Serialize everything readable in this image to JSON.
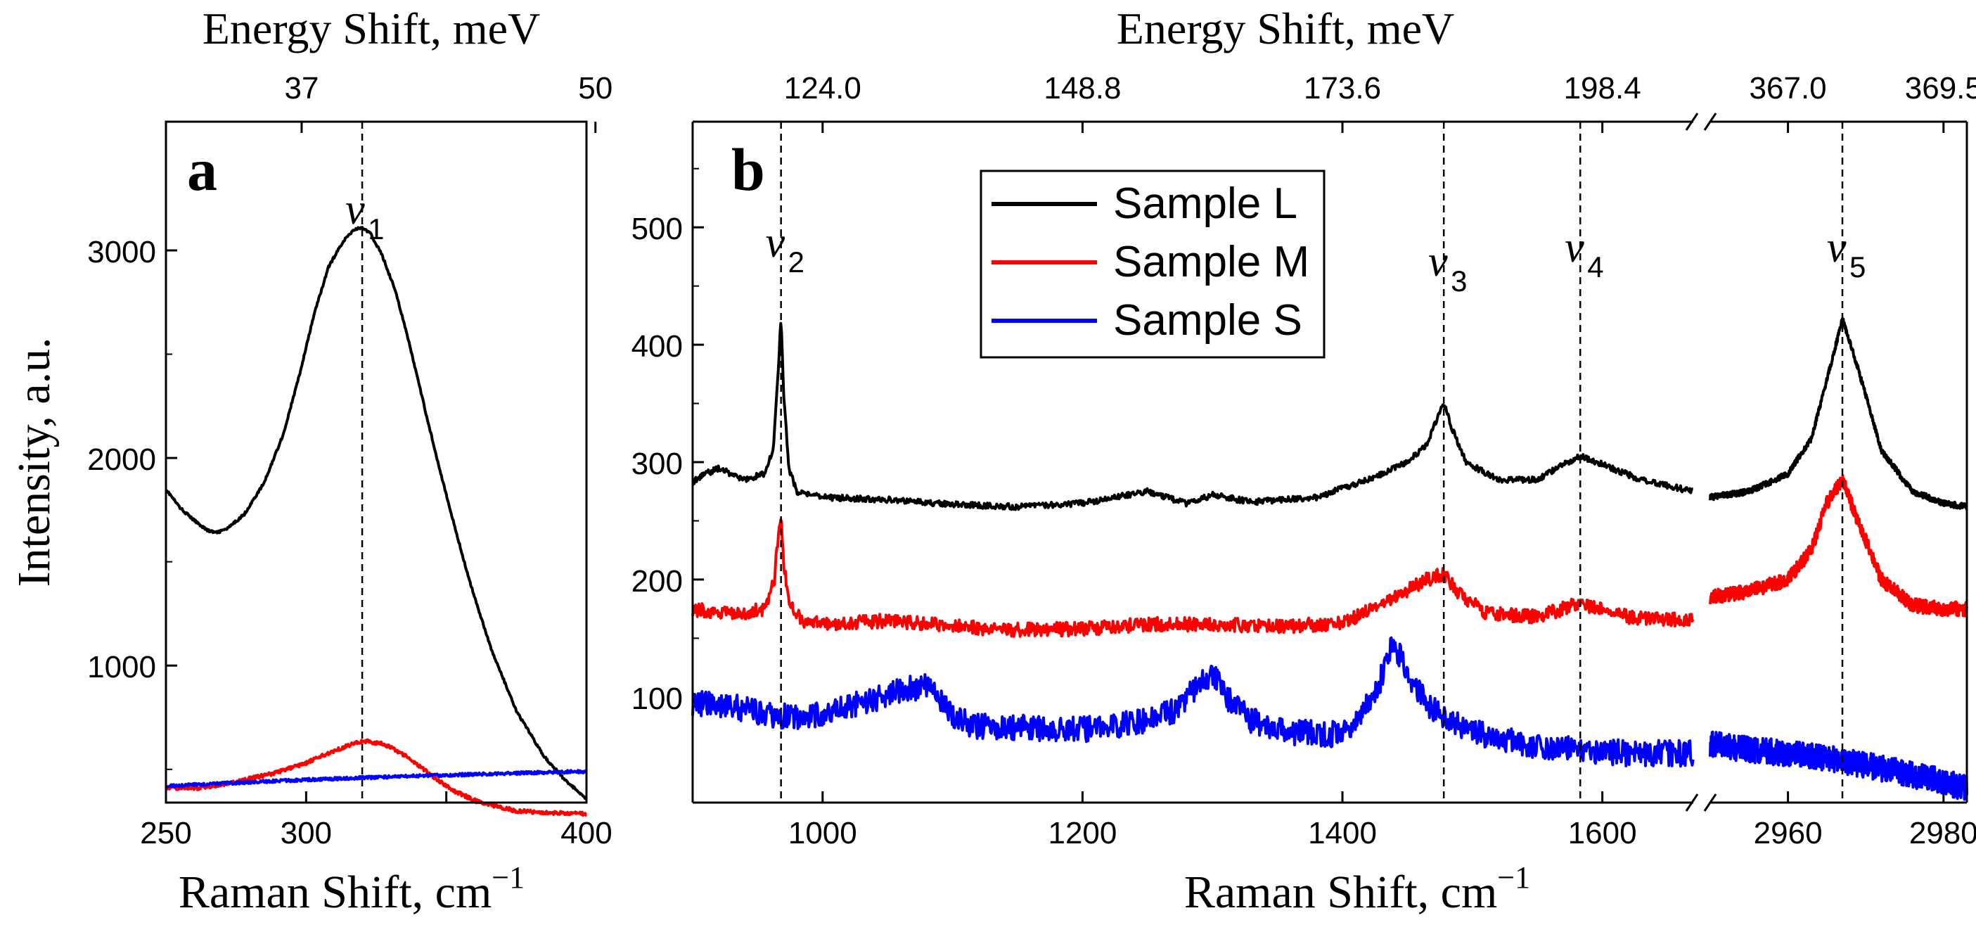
{
  "chart_data": [
    {
      "panel": "a",
      "type": "line",
      "xlabel": "Raman Shift, cm",
      "xlabel_sup": "−1",
      "ylabel": "Intensity, a.u.",
      "top_xlabel": "Energy Shift, meV",
      "xlim": [
        250,
        400
      ],
      "ylim": [
        340,
        3620
      ],
      "x_ticks": [
        250,
        300,
        350,
        400
      ],
      "x_tick_labels": [
        "250",
        "",
        "",
        "400"
      ],
      "x_tick_labels_extra": [
        {
          "x": 300,
          "label": "300"
        }
      ],
      "y_ticks": [
        1000,
        2000,
        3000
      ],
      "y_tick_labels": [
        "1000",
        "2000",
        "3000"
      ],
      "top_ticks": [
        {
          "x": 298.4,
          "label": "37"
        },
        {
          "x": 403.2,
          "label": "50"
        }
      ],
      "peaks": [
        {
          "x": 320,
          "symbol": "ν",
          "sub": "1"
        }
      ],
      "series": [
        {
          "name": "Sample L",
          "color": "#000000",
          "x": [
            250,
            255,
            260,
            265,
            268,
            272,
            278,
            285,
            292,
            298,
            303,
            308,
            313,
            317,
            320,
            323,
            327,
            332,
            337,
            343,
            350,
            358,
            366,
            375,
            385,
            393,
            400
          ],
          "y": [
            1850,
            1760,
            1700,
            1650,
            1640,
            1660,
            1730,
            1880,
            2120,
            2420,
            2700,
            2920,
            3040,
            3100,
            3110,
            3080,
            2980,
            2800,
            2540,
            2200,
            1820,
            1420,
            1080,
            780,
            560,
            440,
            360
          ]
        },
        {
          "name": "Sample M",
          "color": "#ff0000",
          "x": [
            250,
            262,
            275,
            288,
            300,
            310,
            318,
            322,
            328,
            335,
            343,
            352,
            362,
            375,
            388,
            400
          ],
          "y": [
            410,
            410,
            440,
            480,
            530,
            590,
            630,
            635,
            620,
            570,
            490,
            400,
            340,
            300,
            290,
            285
          ]
        },
        {
          "name": "Sample S",
          "color": "#0000ff",
          "x": [
            250,
            275,
            300,
            325,
            350,
            375,
            400
          ],
          "y": [
            420,
            435,
            450,
            462,
            472,
            482,
            490
          ]
        }
      ]
    },
    {
      "panel": "b",
      "type": "line",
      "xlabel": "Raman Shift, cm",
      "xlabel_sup": "−1",
      "top_xlabel": "Energy Shift, meV",
      "broken_axis": true,
      "segments": [
        {
          "xlim": [
            900,
            1670
          ],
          "x_ticks": [
            1000,
            1200,
            1400,
            1600
          ],
          "x_tick_labels": [
            "1000",
            "1200",
            "1400",
            "1600"
          ]
        },
        {
          "xlim": [
            2950,
            2983
          ],
          "x_ticks": [
            2960,
            2980
          ],
          "x_tick_labels": [
            "2960",
            "2980"
          ]
        }
      ],
      "ylim": [
        10,
        590
      ],
      "y_ticks": [
        100,
        200,
        300,
        400,
        500
      ],
      "y_tick_labels": [
        "100",
        "200",
        "300",
        "400",
        "500"
      ],
      "top_ticks": [
        {
          "x": 1000,
          "label": "124.0"
        },
        {
          "x": 1200,
          "label": "148.8"
        },
        {
          "x": 1400,
          "label": "173.6"
        },
        {
          "x": 1600,
          "label": "198.4"
        },
        {
          "x": 2960,
          "label": "367.0"
        },
        {
          "x": 2980,
          "label": "369.5"
        }
      ],
      "peaks": [
        {
          "x": 968,
          "symbol": "ν",
          "sub": "2"
        },
        {
          "x": 1478,
          "symbol": "ν",
          "sub": "3"
        },
        {
          "x": 1583,
          "symbol": "ν",
          "sub": "4"
        },
        {
          "x": 2967,
          "symbol": "ν",
          "sub": "5"
        }
      ],
      "legend": {
        "position": "top-center",
        "entries": [
          "Sample L",
          "Sample M",
          "Sample S"
        ]
      },
      "series": [
        {
          "name": "Sample L",
          "color": "#000000",
          "x": [
            900,
            910,
            920,
            940,
            955,
            962,
            966,
            968,
            970,
            974,
            980,
            1000,
            1050,
            1100,
            1150,
            1200,
            1250,
            1280,
            1300,
            1330,
            1380,
            1420,
            1450,
            1465,
            1472,
            1478,
            1484,
            1495,
            1520,
            1550,
            1570,
            1583,
            1600,
            1630,
            1670,
            2950,
            2955,
            2960,
            2963,
            2965,
            2967,
            2969,
            2972,
            2976,
            2980,
            2983
          ],
          "y": [
            283,
            290,
            295,
            285,
            290,
            310,
            380,
            425,
            360,
            295,
            275,
            270,
            268,
            264,
            262,
            265,
            275,
            265,
            272,
            266,
            270,
            285,
            300,
            315,
            335,
            350,
            330,
            300,
            285,
            285,
            298,
            305,
            298,
            285,
            275,
            270,
            275,
            290,
            320,
            370,
            422,
            380,
            310,
            275,
            265,
            262
          ]
        },
        {
          "name": "Sample M",
          "color": "#ff0000",
          "x": [
            900,
            930,
            955,
            963,
            966,
            968,
            970,
            974,
            985,
            1000,
            1050,
            1100,
            1150,
            1200,
            1250,
            1300,
            1350,
            1400,
            1440,
            1465,
            1478,
            1490,
            1510,
            1550,
            1583,
            1620,
            1670,
            2950,
            2955,
            2960,
            2963,
            2965,
            2967,
            2969,
            2972,
            2976,
            2980,
            2983
          ],
          "y": [
            175,
            170,
            175,
            200,
            240,
            255,
            215,
            180,
            165,
            162,
            165,
            160,
            157,
            158,
            162,
            162,
            160,
            163,
            185,
            200,
            205,
            188,
            172,
            168,
            180,
            168,
            165,
            185,
            190,
            200,
            225,
            265,
            285,
            250,
            200,
            178,
            175,
            175
          ]
        },
        {
          "name": "Sample S",
          "color": "#0000ff",
          "x": [
            900,
            920,
            940,
            960,
            980,
            1000,
            1030,
            1060,
            1080,
            1090,
            1100,
            1120,
            1150,
            1200,
            1240,
            1270,
            1290,
            1300,
            1310,
            1330,
            1360,
            1400,
            1425,
            1435,
            1440,
            1450,
            1465,
            1480,
            1500,
            1540,
            1580,
            1620,
            1670,
            2950,
            2955,
            2960,
            2965,
            2970,
            2975,
            2980,
            2983
          ],
          "y": [
            95,
            93,
            90,
            85,
            82,
            85,
            95,
            105,
            110,
            100,
            82,
            75,
            74,
            72,
            78,
            88,
            110,
            120,
            100,
            80,
            70,
            68,
            100,
            135,
            145,
            120,
            95,
            80,
            70,
            60,
            55,
            52,
            52,
            60,
            55,
            52,
            48,
            42,
            35,
            28,
            22
          ]
        }
      ]
    }
  ]
}
